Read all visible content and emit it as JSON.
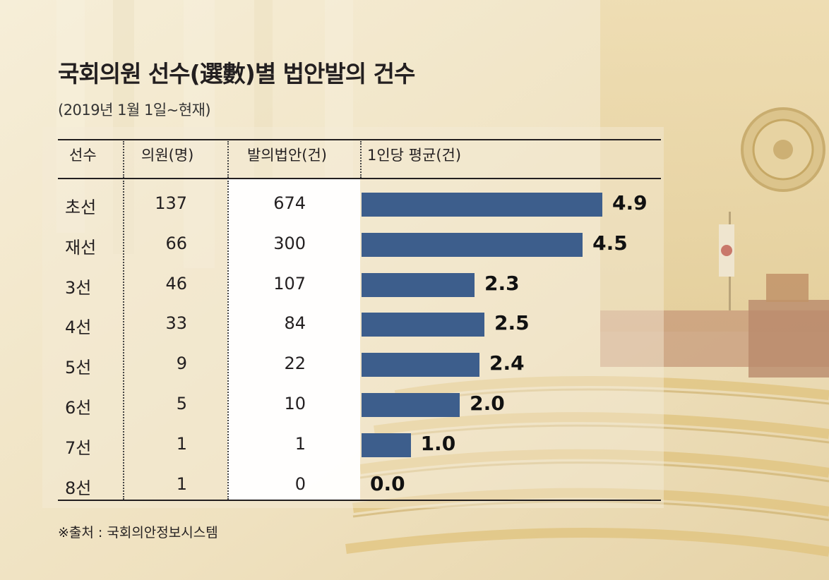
{
  "title": "국회의원 선수(選數)별 법안발의 건수",
  "subtitle": "(2019년 1월 1일~현재)",
  "source": "※출처 : 국회의안정보시스템",
  "headers": {
    "rank": "선수",
    "members": "의원(명)",
    "bills": "발의법안(건)",
    "avg": "1인당 평균(건)"
  },
  "colors": {
    "bar": "#3d5e8c",
    "text": "#231f20"
  },
  "chart_data": {
    "type": "bar",
    "categories": [
      "초선",
      "재선",
      "3선",
      "4선",
      "5선",
      "6선",
      "7선",
      "8선"
    ],
    "members": [
      "137",
      "66",
      "46",
      "33",
      "9",
      "5",
      "1",
      "1"
    ],
    "bills": [
      "674",
      "300",
      "107",
      "84",
      "22",
      "10",
      "1",
      "0"
    ],
    "values": [
      4.9,
      4.5,
      2.3,
      2.5,
      2.4,
      2.0,
      1.0,
      0.0
    ],
    "value_labels": [
      "4.9",
      "4.5",
      "2.3",
      "2.5",
      "2.4",
      "2.0",
      "1.0",
      "0.0"
    ],
    "title": "국회의원 선수(選數)별 법안발의 건수",
    "xlabel": "",
    "ylabel": "1인당 평균(건)",
    "xlim": [
      0,
      4.9
    ]
  }
}
